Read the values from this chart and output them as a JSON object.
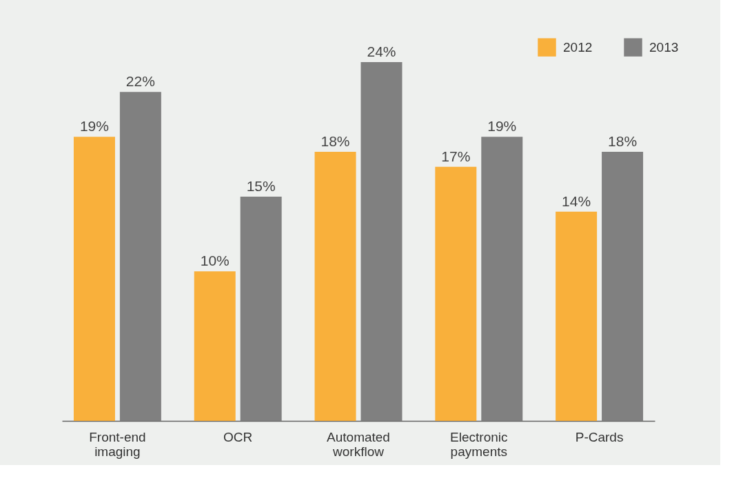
{
  "chart_data": {
    "type": "bar",
    "categories": [
      "Front-end imaging",
      "OCR",
      "Automated workflow",
      "Electronic payments",
      "P-Cards"
    ],
    "series": [
      {
        "name": "2012",
        "color": "#f9b03b",
        "values": [
          19,
          10,
          18,
          17,
          14
        ],
        "value_labels": [
          "19%",
          "10%",
          "18%",
          "17%",
          "14%"
        ]
      },
      {
        "name": "2013",
        "color": "#808080",
        "values": [
          22,
          15,
          24,
          19,
          18
        ],
        "value_labels": [
          "22%",
          "15%",
          "24%",
          "19%",
          "18%"
        ]
      }
    ],
    "legend": "top right",
    "grid": false
  }
}
